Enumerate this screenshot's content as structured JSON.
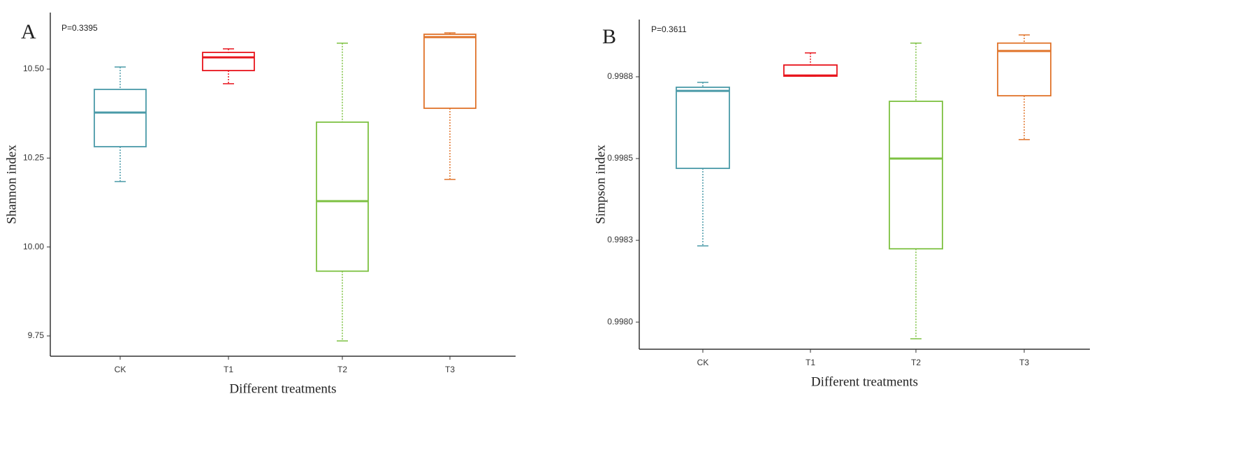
{
  "chart_data": [
    {
      "type": "box",
      "panel_label": "A",
      "annotation": "P=0.3395",
      "xlabel": "Different treatments",
      "ylabel": "Shannon index",
      "categories": [
        "CK",
        "T1",
        "T2",
        "T3"
      ],
      "colors": [
        "#4a9aa8",
        "#e8141c",
        "#7dc142",
        "#e0732a"
      ],
      "whisker_high": [
        10.506,
        10.557,
        10.573,
        10.602
      ],
      "q3": [
        10.443,
        10.547,
        10.351,
        10.598
      ],
      "median": [
        10.378,
        10.533,
        10.129,
        10.59
      ],
      "q1": [
        10.282,
        10.496,
        9.932,
        10.39
      ],
      "whisker_low": [
        10.184,
        10.459,
        9.736,
        10.19
      ],
      "ylim": [
        9.693,
        10.659
      ],
      "yticks": [
        9.75,
        {
          "value": 10,
          "label": "10.00"
        },
        10.25,
        {
          "value": 10.5,
          "label": "10.50"
        }
      ]
    },
    {
      "type": "box",
      "panel_label": "B",
      "annotation": "P=0.3611",
      "xlabel": "Different treatments",
      "ylabel": "Simpson index",
      "categories": [
        "CK",
        "T1",
        "T2",
        "T3"
      ],
      "colors": [
        "#4a9aa8",
        "#e8141c",
        "#7dc142",
        "#e0732a"
      ],
      "whisker_high": [
        0.998733,
        0.998823,
        0.998853,
        0.998878
      ],
      "q3": [
        0.998718,
        0.998786,
        0.998675,
        0.998853
      ],
      "median": [
        0.998707,
        0.998754,
        0.9985,
        0.998829
      ],
      "q1": [
        0.99847,
        0.998752,
        0.998224,
        0.998692
      ],
      "whisker_low": [
        0.998233,
        0.998752,
        0.997949,
        0.998558
      ],
      "ylim": [
        0.997917,
        0.998925
      ],
      "yticks": [
        {
          "value": 0.998,
          "label": "0.9980"
        },
        {
          "value": 0.99825,
          "label": "0.9983"
        },
        0.9985,
        {
          "value": 0.99875,
          "label": "0.9988"
        }
      ]
    }
  ]
}
